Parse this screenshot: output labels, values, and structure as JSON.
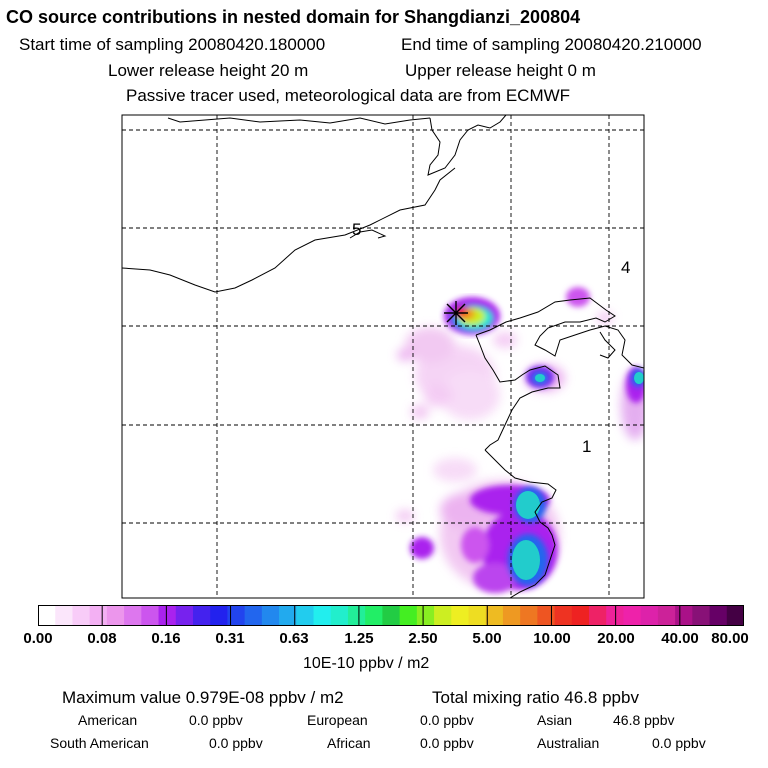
{
  "header": {
    "title": "CO  source contributions in nested domain for Shangdianzi_200804",
    "start_label": "Start time of sampling 20080420.180000",
    "end_label": "End time of sampling 20080420.210000",
    "lower_label": "Lower release height   20 m",
    "upper_label": "Upper release height    0 m",
    "tracer_label": "Passive tracer used, meteorological data are from ECMWF"
  },
  "map": {
    "region_labels": [
      "5",
      "4",
      "1"
    ],
    "station_marker": "x-star-icon"
  },
  "legend": {
    "ticks": [
      "0.00",
      "0.08",
      "0.16",
      "0.31",
      "0.63",
      "1.25",
      "2.50",
      "5.00",
      "10.00",
      "20.00",
      "40.00",
      "80.00"
    ],
    "unit": "10E-10 ppbv / m2",
    "colors": [
      "#ffffff",
      "#fbe6fb",
      "#f8ccf8",
      "#f3b0f3",
      "#ec96ec",
      "#dd77ee",
      "#cc55ee",
      "#aa22ee",
      "#7722ee",
      "#4422ee",
      "#2222ee",
      "#2244ee",
      "#2266ee",
      "#2288ee",
      "#22aaee",
      "#22ccee",
      "#22eeee",
      "#22eecc",
      "#22ee99",
      "#22ee66",
      "#22cc44",
      "#44ee22",
      "#88ee22",
      "#ccee22",
      "#eeee22",
      "#eedd22",
      "#eebb22",
      "#ee9922",
      "#ee7722",
      "#ee5522",
      "#ee3322",
      "#ee2222",
      "#ee2266",
      "#ee2299",
      "#ee22aa",
      "#dd22aa",
      "#cc2299",
      "#aa1188",
      "#881177",
      "#660066",
      "#440044"
    ]
  },
  "summary": {
    "max_label": "Maximum value  0.979E-08 ppbv / m2",
    "total_label": "Total mixing ratio      46.8 ppbv",
    "american_label": "American",
    "american_value": "0.0 ppbv",
    "european_label": "European",
    "european_value": "0.0 ppbv",
    "asian_label": "Asian",
    "asian_value": "46.8 ppbv",
    "south_american_label": "South American",
    "south_american_value": "0.0 ppbv",
    "african_label": "African",
    "african_value": "0.0 ppbv",
    "australian_label": "Australian",
    "australian_value": "0.0 ppbv"
  }
}
